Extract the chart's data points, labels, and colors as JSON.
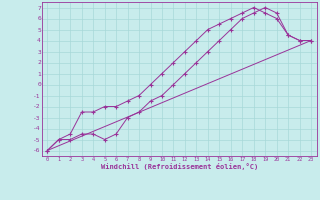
{
  "title": "",
  "xlabel": "Windchill (Refroidissement éolien,°C)",
  "ylabel": "",
  "bg_color": "#c8ecec",
  "line_color": "#993399",
  "grid_color": "#a8d8d8",
  "xlim": [
    -0.5,
    23.5
  ],
  "ylim": [
    -6.5,
    7.5
  ],
  "xticks": [
    0,
    1,
    2,
    3,
    4,
    5,
    6,
    7,
    8,
    9,
    10,
    11,
    12,
    13,
    14,
    15,
    16,
    17,
    18,
    19,
    20,
    21,
    22,
    23
  ],
  "yticks": [
    -6,
    -5,
    -4,
    -3,
    -2,
    -1,
    0,
    1,
    2,
    3,
    4,
    5,
    6,
    7
  ],
  "line1_x": [
    0,
    1,
    2,
    3,
    4,
    5,
    6,
    7,
    8,
    9,
    10,
    11,
    12,
    13,
    14,
    15,
    16,
    17,
    18,
    19,
    20,
    21,
    22,
    23
  ],
  "line1_y": [
    -6,
    -5,
    -5,
    -4.5,
    -4.5,
    -5,
    -4.5,
    -3,
    -2.5,
    -1.5,
    -1,
    0,
    1,
    2,
    3,
    4,
    5,
    6,
    6.5,
    7,
    6.5,
    4.5,
    4,
    4
  ],
  "line2_x": [
    0,
    1,
    2,
    3,
    4,
    5,
    6,
    7,
    8,
    9,
    10,
    11,
    12,
    13,
    14,
    15,
    16,
    17,
    18,
    19,
    20,
    21,
    22,
    23
  ],
  "line2_y": [
    -6,
    -5,
    -4.5,
    -2.5,
    -2.5,
    -2,
    -2,
    -1.5,
    -1,
    0,
    1,
    2,
    3,
    4,
    5,
    5.5,
    6,
    6.5,
    7,
    6.5,
    6,
    4.5,
    4,
    4
  ],
  "line3_x": [
    0,
    23
  ],
  "line3_y": [
    -6,
    4
  ],
  "marker": "+"
}
